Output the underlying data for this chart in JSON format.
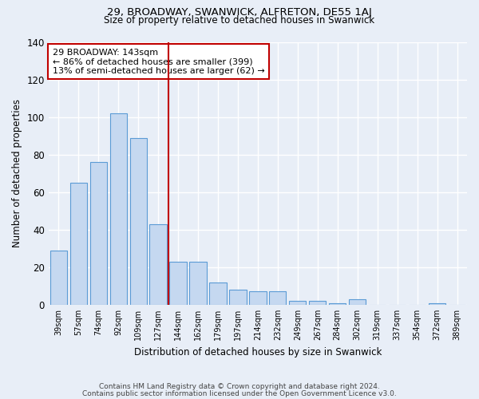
{
  "title1": "29, BROADWAY, SWANWICK, ALFRETON, DE55 1AJ",
  "title2": "Size of property relative to detached houses in Swanwick",
  "xlabel": "Distribution of detached houses by size in Swanwick",
  "ylabel": "Number of detached properties",
  "categories": [
    "39sqm",
    "57sqm",
    "74sqm",
    "92sqm",
    "109sqm",
    "127sqm",
    "144sqm",
    "162sqm",
    "179sqm",
    "197sqm",
    "214sqm",
    "232sqm",
    "249sqm",
    "267sqm",
    "284sqm",
    "302sqm",
    "319sqm",
    "337sqm",
    "354sqm",
    "372sqm",
    "389sqm"
  ],
  "values": [
    29,
    65,
    76,
    102,
    89,
    43,
    23,
    23,
    12,
    8,
    7,
    7,
    2,
    2,
    1,
    3,
    0,
    0,
    0,
    1,
    0
  ],
  "bar_color": "#c5d8f0",
  "bar_edge_color": "#5b9bd5",
  "marker_index": 6,
  "marker_color": "#c00000",
  "annotation_text": "29 BROADWAY: 143sqm\n← 86% of detached houses are smaller (399)\n13% of semi-detached houses are larger (62) →",
  "annotation_box_color": "#ffffff",
  "annotation_box_edge": "#c00000",
  "bg_color": "#e8eef7",
  "grid_color": "#ffffff",
  "footer1": "Contains HM Land Registry data © Crown copyright and database right 2024.",
  "footer2": "Contains public sector information licensed under the Open Government Licence v3.0.",
  "ylim": [
    0,
    140
  ],
  "yticks": [
    0,
    20,
    40,
    60,
    80,
    100,
    120,
    140
  ]
}
